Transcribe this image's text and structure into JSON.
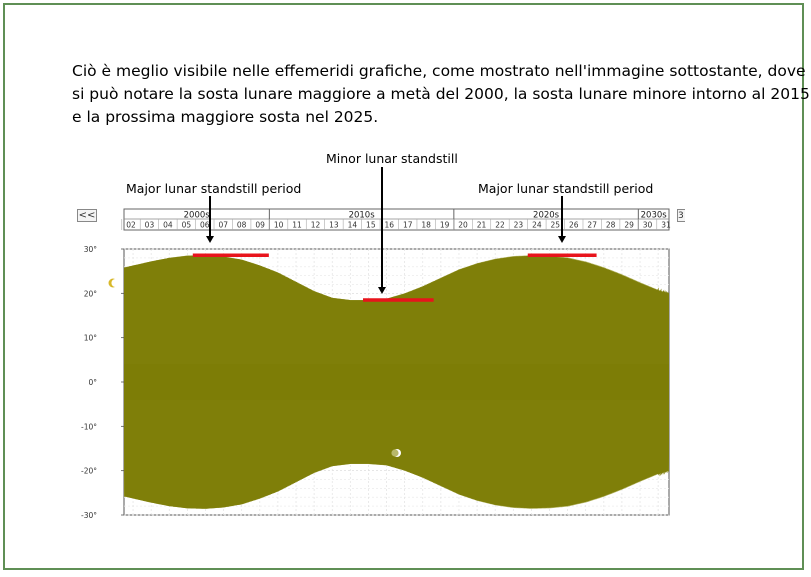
{
  "paragraph": {
    "line1": "Ciò è meglio visibile nelle effemeridi grafiche, come mostrato nell'immagine sottostante, dove",
    "line2": "si può notare la sosta lunare maggiore a metà del 2000, la sosta lunare minore intorno al 2015",
    "line3": "e la prossima maggiore sosta nel 2025."
  },
  "annotations": {
    "minor": "Minor lunar standstill",
    "major_left": "Major lunar standstill period",
    "major_right": "Major lunar standstill period"
  },
  "nav": {
    "prev": "<<",
    "next": "3"
  },
  "colors": {
    "band": "#7b7b04",
    "band_light": "#b8b86a",
    "marker": "#e8141c",
    "frame": "#5f8f55"
  },
  "icons": {
    "moon_left": "crescent-moon-icon",
    "moon_mid": "crescent-moon-icon"
  },
  "chart_data": {
    "type": "area",
    "title": "",
    "xlabel": "",
    "ylabel": "",
    "decades": [
      "2000s",
      "2010s",
      "2020s",
      "2030s"
    ],
    "year_ticks": [
      "02",
      "03",
      "04",
      "05",
      "06",
      "07",
      "08",
      "09",
      "10",
      "11",
      "12",
      "13",
      "14",
      "15",
      "16",
      "17",
      "18",
      "19",
      "20",
      "21",
      "22",
      "23",
      "24",
      "25",
      "26",
      "27",
      "28",
      "29",
      "30",
      "31"
    ],
    "y_ticks": [
      "30°",
      "20°",
      "10°",
      "0°",
      "-10°",
      "-20°",
      "-30°"
    ],
    "ylim": [
      -30,
      30
    ],
    "xlim": [
      2001.5,
      2031.6
    ],
    "grid": true,
    "series": [
      {
        "x": [
          2001.5,
          2003,
          2004,
          2005,
          2006,
          2007,
          2008,
          2009,
          2010,
          2011,
          2012,
          2013,
          2014,
          2015,
          2016,
          2017,
          2018,
          2019,
          2020,
          2021,
          2022,
          2023,
          2024,
          2025,
          2026,
          2027,
          2028,
          2029,
          2030,
          2031,
          2031.6
        ],
        "values": [
          25.8,
          27.2,
          28.0,
          28.5,
          28.6,
          28.3,
          27.6,
          26.3,
          24.7,
          22.6,
          20.5,
          19.0,
          18.5,
          18.5,
          18.8,
          20.0,
          21.6,
          23.5,
          25.4,
          26.8,
          27.8,
          28.4,
          28.6,
          28.5,
          28.1,
          27.2,
          25.9,
          24.3,
          22.5,
          20.8,
          20.0
        ]
      }
    ],
    "markers": [
      {
        "label": "Major lunar standstill period",
        "x_start": 2005.3,
        "x_end": 2009.5,
        "y": 28.6
      },
      {
        "label": "Minor lunar standstill",
        "x_start": 2014.7,
        "x_end": 2018.6,
        "y": 18.5
      },
      {
        "label": "Major lunar standstill period",
        "x_start": 2023.8,
        "x_end": 2027.6,
        "y": 28.6
      }
    ]
  }
}
